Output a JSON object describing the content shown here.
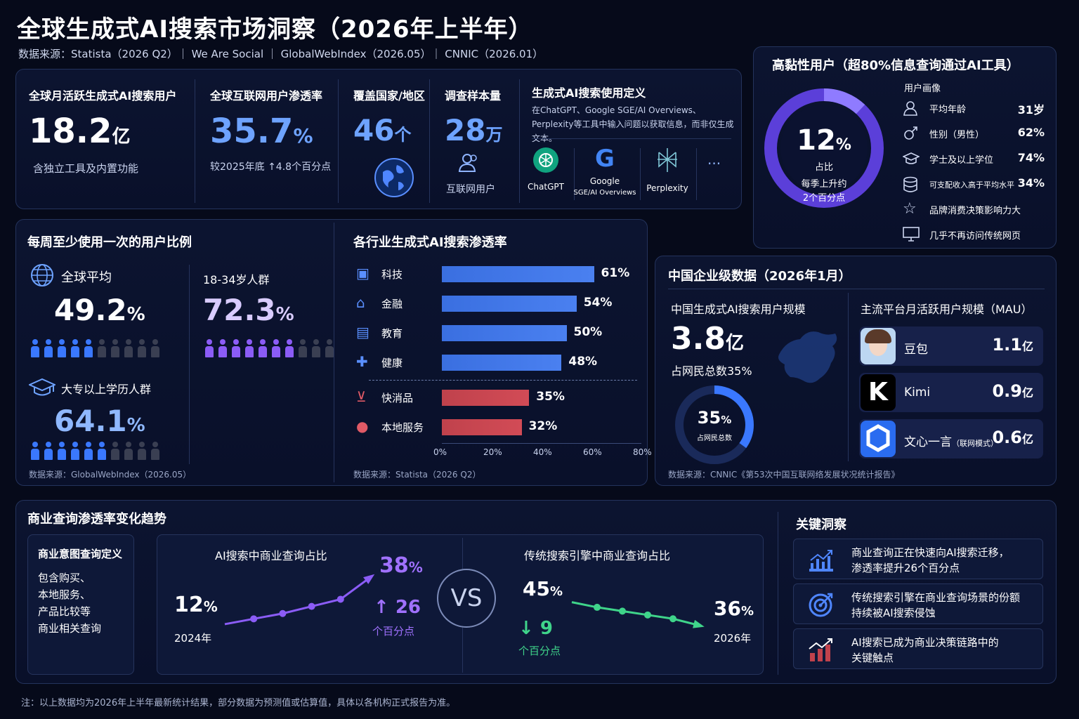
{
  "title": "全球生成式AI搜索市场洞察（2026年上半年）",
  "sources": "数据来源：Statista（2026 Q2）｜ We Are Social ｜ GlobalWebIndex（2026.05）｜ CNNIC（2026.01）",
  "kpi": {
    "mau_label": "全球月活跃生成式AI搜索用户",
    "mau_value": "18.2",
    "mau_unit": "亿",
    "mau_note": "含独立工具及内置功能",
    "pen_label": "全球互联网用户渗透率",
    "pen_value": "35.7",
    "pen_unit": "%",
    "pen_note": "较2025年底 ↑4.8个百分点",
    "cov_label": "覆盖国家/地区",
    "cov_value": "46",
    "cov_unit": "个",
    "sample_label": "调查样本量",
    "sample_value": "28",
    "sample_unit": "万",
    "sample_note": "互联网用户",
    "def_title": "生成式AI搜索使用定义",
    "def_text": "在ChatGPT、Google SGE/AI Overviews、Perplexity等工具中输入问题以获取信息，而非仅生成文本。",
    "tools": [
      {
        "name": "ChatGPT",
        "sub": ""
      },
      {
        "name": "Google",
        "sub": "SGE/AI Overviews"
      },
      {
        "name": "Perplexity",
        "sub": ""
      }
    ],
    "more": "···"
  },
  "sticky": {
    "title": "高黏性用户（超80%信息查询通过AI工具）",
    "ring_value": "12",
    "ring_unit": "%",
    "ring_label": "占比",
    "ring_note1": "每季上升约",
    "ring_note2": "2个百分点",
    "profile_title": "用户画像",
    "profile": [
      {
        "icon": "user-icon",
        "label": "平均年龄",
        "value": "31岁"
      },
      {
        "icon": "male-icon",
        "label": "性别（男性）",
        "value": "62%"
      },
      {
        "icon": "graduation-cap-icon",
        "label": "学士及以上学位",
        "value": "74%"
      },
      {
        "icon": "database-icon",
        "label": "可支配收入高于平均水平",
        "value": "34%"
      },
      {
        "icon": "star-icon",
        "label": "品牌消费决策影响力大",
        "value": ""
      },
      {
        "icon": "monitor-icon",
        "label": "几乎不再访问传统网页",
        "value": ""
      }
    ],
    "ring_fraction": 0.12
  },
  "weekly": {
    "title": "每周至少使用一次的用户比例",
    "global_label": "全球平均",
    "global_value": "49.2",
    "global_unit": "%",
    "young_label": "18-34岁人群",
    "young_value": "72.3",
    "young_unit": "%",
    "edu_label": "大专以上学历人群",
    "edu_value": "64.1",
    "edu_unit": "%",
    "source": "数据来源：GlobalWebIndex（2026.05）"
  },
  "industry": {
    "title": "各行业生成式AI搜索渗透率",
    "source": "数据来源：Statista（2026 Q2）"
  },
  "china": {
    "title": "中国企业级数据（2026年1月）",
    "users_label": "中国生成式AI搜索用户规模",
    "users_value": "3.8",
    "users_unit": "亿",
    "users_note": "占网民总数35%",
    "ring_value": "35",
    "ring_unit": "%",
    "ring_label": "占网民总数",
    "ring_fraction": 0.35,
    "mau_title": "主流平台月活跃用户规模（MAU）",
    "platforms": [
      {
        "name": "豆包",
        "tag": "",
        "value": "1.1",
        "unit": "亿"
      },
      {
        "name": "Kimi",
        "tag": "",
        "value": "0.9",
        "unit": "亿"
      },
      {
        "name": "文心一言",
        "tag": "（联网模式）",
        "value": "0.6",
        "unit": "亿"
      }
    ],
    "source": "数据来源：CNNIC《第53次中国互联网络发展状况统计报告》"
  },
  "trend": {
    "title": "商业查询渗透率变化趋势",
    "def_title": "商业意图查询定义",
    "def_lines": [
      "包含购买、",
      "本地服务、",
      "产品比较等",
      "商业相关查询"
    ],
    "ai_title": "AI搜索中商业查询占比",
    "ai_start": "12",
    "ai_end": "38",
    "ai_unit": "%",
    "ai_year": "2024年",
    "ai_delta": "↑ 26",
    "ai_delta_unit": "个百分点",
    "vs": "VS",
    "trad_title": "传统搜索引擎中商业查询占比",
    "trad_start": "45",
    "trad_end": "36",
    "trad_unit": "%",
    "trad_year": "2026年",
    "trad_delta": "↓ 9",
    "trad_delta_unit": "个百分点"
  },
  "insights": {
    "title": "关键洞察",
    "items": [
      {
        "icon": "bar-growth-icon",
        "text1": "商业查询正在快速向AI搜索迁移，",
        "text2": "渗透率提升26个百分点"
      },
      {
        "icon": "target-icon",
        "text1": "传统搜索引擎在商业查询场景的份额",
        "text2": "持续被AI搜索侵蚀"
      },
      {
        "icon": "trend-chart-icon",
        "text1": "AI搜索已成为商业决策链路中的",
        "text2": "关键触点"
      }
    ]
  },
  "footnote": "注：以上数据均为2026年上半年最新统计结果，部分数据为预测值或估算值，具体以各机构正式报告为准。",
  "colors": {
    "blue": "#3a6fe0",
    "red": "#c0424c",
    "purple": "#8b5cf6",
    "green": "#3fd48a"
  },
  "chart_data": [
    {
      "type": "bar",
      "title": "各行业生成式AI搜索渗透率",
      "categories": [
        "科技",
        "金融",
        "教育",
        "健康",
        "快消品",
        "本地服务"
      ],
      "values": [
        61,
        54,
        50,
        48,
        35,
        32
      ],
      "xlim": [
        0,
        80
      ],
      "ticks": [
        "0%",
        "20%",
        "40%",
        "60%",
        "80%"
      ]
    },
    {
      "type": "line",
      "title": "AI搜索中商业查询占比",
      "x": [
        "2024年",
        "",
        "",
        "",
        "",
        "2026年"
      ],
      "values": [
        12,
        15,
        18,
        22,
        26,
        38
      ]
    },
    {
      "type": "line",
      "title": "传统搜索引擎中商业查询占比",
      "x": [
        "",
        "",
        "",
        "",
        "",
        "2026年"
      ],
      "values": [
        45,
        43,
        41.5,
        40,
        38.5,
        36
      ]
    },
    {
      "type": "pictogram",
      "title": "每周至少使用一次的用户比例",
      "series": [
        {
          "name": "全球平均",
          "value": 49.2
        },
        {
          "name": "18-34岁人群",
          "value": 72.3
        },
        {
          "name": "大专以上学历人群",
          "value": 64.1
        }
      ]
    }
  ]
}
